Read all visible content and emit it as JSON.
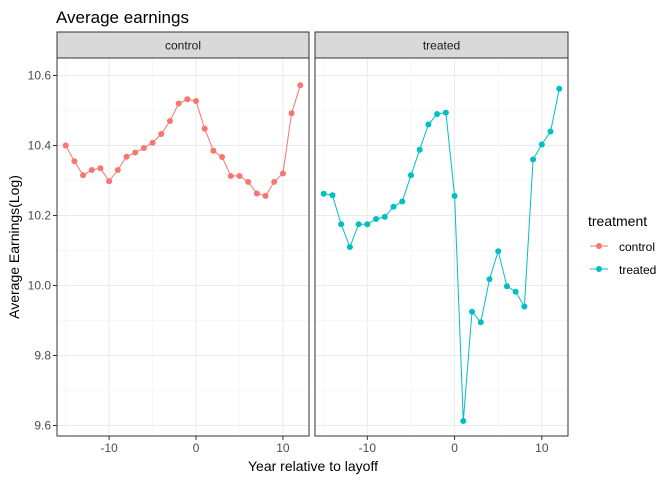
{
  "chart_data": {
    "type": "line",
    "title": "Average earnings",
    "xlabel": "Year relative to layoff",
    "ylabel": "Average Earnings(Log)",
    "xlim": [
      -16,
      13
    ],
    "ylim": [
      9.57,
      10.65
    ],
    "x_ticks": [
      -10,
      0,
      10
    ],
    "y_ticks": [
      9.6,
      9.8,
      10.0,
      10.2,
      10.4,
      10.6
    ],
    "x_tick_labels": [
      "-10",
      "0",
      "10"
    ],
    "y_tick_labels": [
      "9.6",
      "9.8",
      "10.0",
      "10.2",
      "10.4",
      "10.6"
    ],
    "grid": true,
    "legend": {
      "title": "treatment",
      "placement": "right",
      "entries": [
        "control",
        "treated"
      ]
    },
    "panels": [
      {
        "name": "control",
        "strip_label": "control",
        "color": "#F8766D",
        "x": [
          -15,
          -14,
          -13,
          -12,
          -11,
          -10,
          -9,
          -8,
          -7,
          -6,
          -5,
          -4,
          -3,
          -2,
          -1,
          0,
          1,
          2,
          3,
          4,
          5,
          6,
          7,
          8,
          9,
          10,
          11,
          12
        ],
        "values": [
          10.4,
          10.355,
          10.315,
          10.33,
          10.335,
          10.298,
          10.33,
          10.368,
          10.38,
          10.393,
          10.408,
          10.433,
          10.47,
          10.52,
          10.532,
          10.527,
          10.448,
          10.385,
          10.367,
          10.313,
          10.313,
          10.296,
          10.263,
          10.256,
          10.296,
          10.32,
          10.492,
          10.572
        ]
      },
      {
        "name": "treated",
        "strip_label": "treated",
        "color": "#00BFC4",
        "x": [
          -15,
          -14,
          -13,
          -12,
          -11,
          -10,
          -9,
          -8,
          -7,
          -6,
          -5,
          -4,
          -3,
          -2,
          -1,
          0,
          1,
          2,
          3,
          4,
          5,
          6,
          7,
          8,
          9,
          10,
          11,
          12
        ],
        "values": [
          10.262,
          10.258,
          10.175,
          10.11,
          10.175,
          10.175,
          10.19,
          10.196,
          10.225,
          10.24,
          10.315,
          10.388,
          10.46,
          10.49,
          10.494,
          10.256,
          9.613,
          9.925,
          9.895,
          10.018,
          10.098,
          9.998,
          9.982,
          9.94,
          10.36,
          10.403,
          10.44,
          10.562
        ]
      }
    ]
  }
}
